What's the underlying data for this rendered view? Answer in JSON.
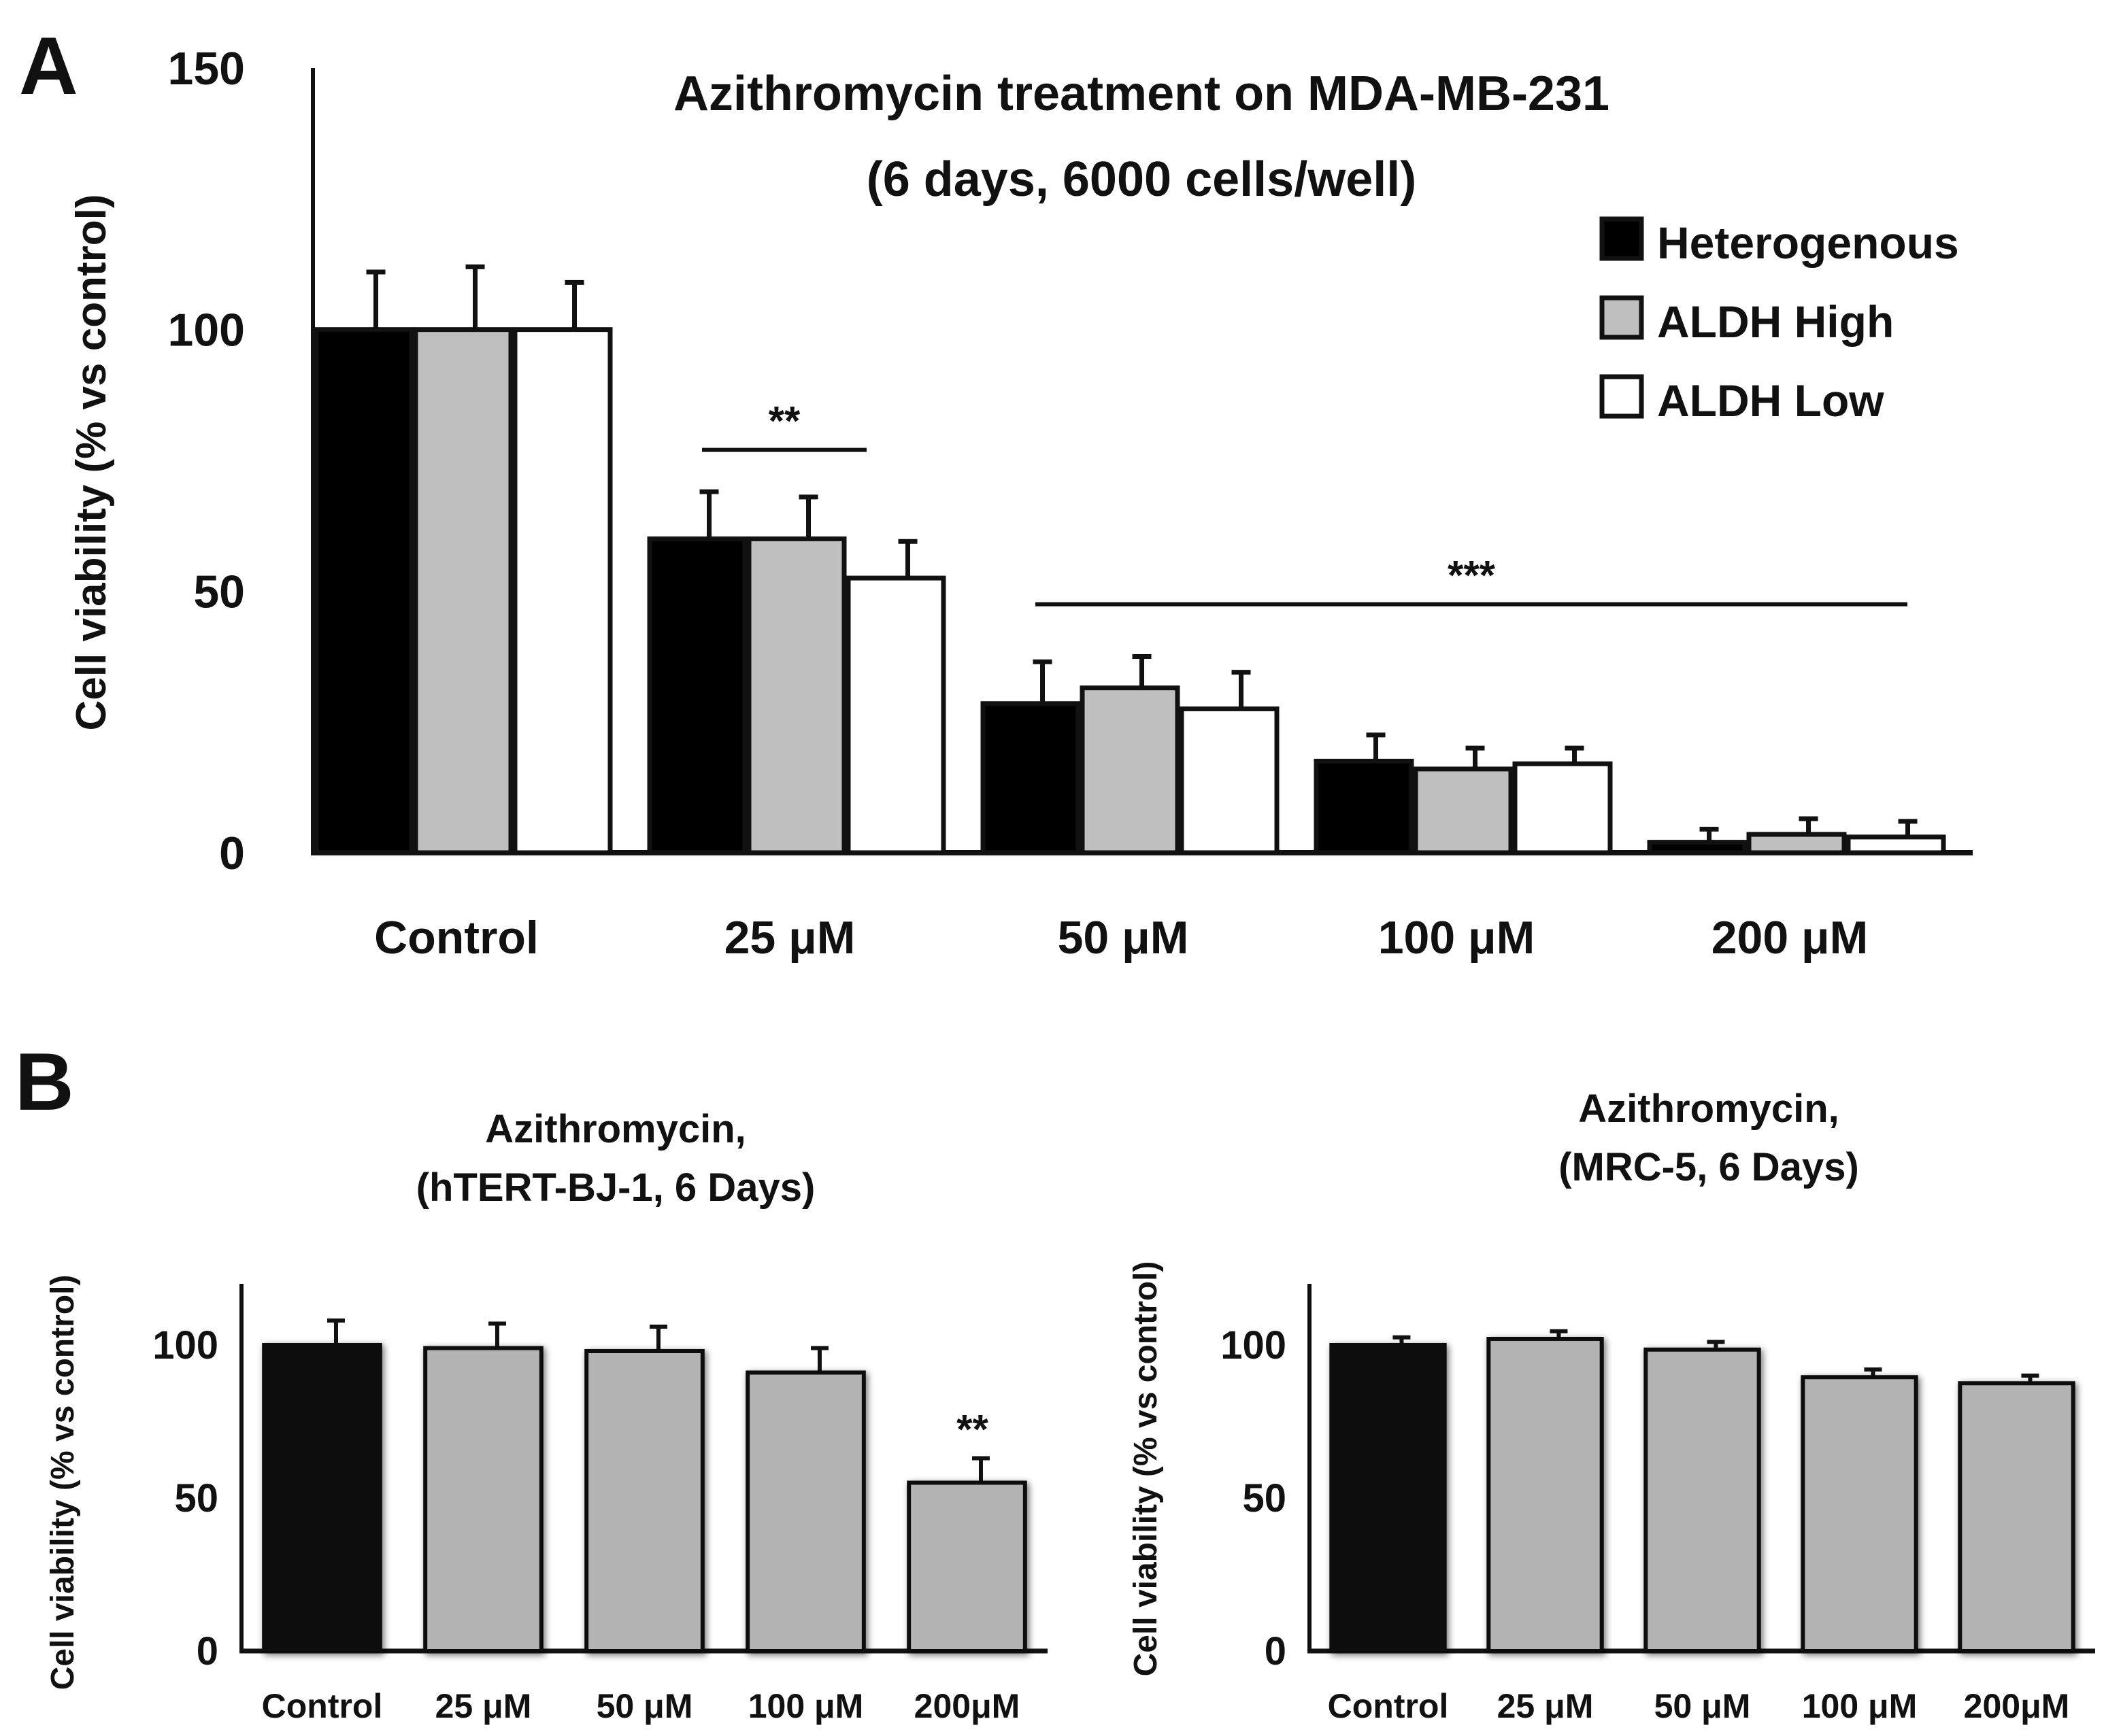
{
  "chart_data": [
    {
      "panel": "A",
      "type": "bar",
      "title_line1": "Azithromycin treatment on MDA-MB-231",
      "title_line2": "(6 days, 6000 cells/well)",
      "ylabel": "Cell viability (% vs control)",
      "xlabel": "",
      "ylim": [
        0,
        150
      ],
      "yticks": [
        "0",
        "50",
        "100",
        "150"
      ],
      "categories": [
        "Control",
        "25 μM",
        "50 μM",
        "100 μM",
        "200 μM"
      ],
      "series": [
        {
          "name": "Heterogenous",
          "color": "#000000",
          "values": [
            100,
            60,
            28.5,
            17.5,
            2
          ],
          "errors": [
            11,
            9,
            8,
            5,
            2.5
          ]
        },
        {
          "name": "ALDH High",
          "color": "#bfbfbf",
          "values": [
            100,
            60,
            31.5,
            16,
            3.5
          ],
          "errors": [
            12,
            8,
            6,
            4,
            3
          ]
        },
        {
          "name": "ALDH Low",
          "color": "#ffffff",
          "values": [
            100,
            52.5,
            27.5,
            17,
            3
          ],
          "errors": [
            9,
            7,
            7,
            3,
            3
          ]
        }
      ],
      "annotations": [
        {
          "text": "**",
          "from_category": "25 μM",
          "to_category": "25 μM",
          "level": 77
        },
        {
          "text": "***",
          "from_category": "50 μM",
          "to_category": "200 μM",
          "level": 47.5
        }
      ]
    },
    {
      "panel": "B",
      "type": "bar",
      "title_line1": "Azithromycin,",
      "title_line2": "(hTERT-BJ-1, 6 Days)",
      "ylabel": "Cell viability (% vs control)",
      "xlabel": "",
      "ylim": [
        0,
        120
      ],
      "yticks": [
        "0",
        "50",
        "100"
      ],
      "categories": [
        "Control",
        "25 μM",
        "50 μM",
        "100 μM",
        "200μM"
      ],
      "colors": [
        "#111111",
        "#b3b3b3",
        "#b3b3b3",
        "#b3b3b3",
        "#b3b3b3"
      ],
      "values": [
        100,
        99,
        98,
        91,
        55
      ],
      "errors": [
        8,
        8,
        8,
        8,
        8
      ],
      "annotations": [
        {
          "text": "**",
          "category": "200μM"
        }
      ]
    },
    {
      "type": "bar",
      "title_line1": "Azithromycin,",
      "title_line2": "(MRC-5, 6 Days)",
      "ylabel": "Cell viability (% vs control)",
      "xlabel": "",
      "ylim": [
        0,
        120
      ],
      "yticks": [
        "0",
        "50",
        "100"
      ],
      "categories": [
        "Control",
        "25 μM",
        "50 μM",
        "100 μM",
        "200μM"
      ],
      "colors": [
        "#111111",
        "#b3b3b3",
        "#b3b3b3",
        "#b3b3b3",
        "#b3b3b3"
      ],
      "values": [
        100,
        102,
        98.5,
        89.5,
        87.5
      ],
      "errors": [
        2.5,
        2.5,
        2.5,
        2.5,
        2.5
      ],
      "annotations": []
    }
  ]
}
